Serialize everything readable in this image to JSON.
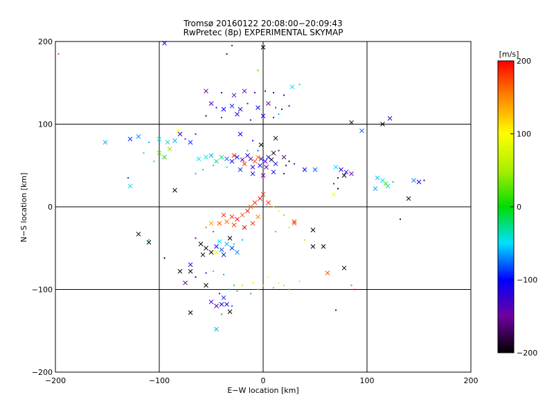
{
  "chart_data": {
    "type": "scatter",
    "title": "Tromsø 20160122 20:08:00−20:09:43",
    "subtitle": "RwPretec (8p) EXPERIMENTAL SKYMAP",
    "xlabel": "E−W location [km]",
    "ylabel": "N−S location [km]",
    "xlim": [
      -200,
      200
    ],
    "ylim": [
      -200,
      200
    ],
    "x_ticks": [
      -200,
      -100,
      0,
      100,
      200
    ],
    "y_ticks": [
      -200,
      -100,
      0,
      100,
      200
    ],
    "grid": true,
    "colorbar": {
      "label": "[m/s]",
      "min": -200,
      "max": 200,
      "ticks": [
        200,
        100,
        0,
        -100,
        -200
      ]
    },
    "markers": [
      "x",
      "dot"
    ],
    "points": [
      {
        "x": -197,
        "y": 185,
        "v": 180,
        "m": "dot"
      },
      {
        "x": -95,
        "y": 198,
        "v": -110,
        "m": "x"
      },
      {
        "x": -30,
        "y": 195,
        "v": -150,
        "m": "dot"
      },
      {
        "x": -35,
        "y": 185,
        "v": -170,
        "m": "dot"
      },
      {
        "x": 0,
        "y": 193,
        "v": -200,
        "m": "x"
      },
      {
        "x": -5,
        "y": 165,
        "v": 20,
        "m": "dot"
      },
      {
        "x": -55,
        "y": 140,
        "v": -160,
        "m": "x"
      },
      {
        "x": -40,
        "y": 138,
        "v": -120,
        "m": "dot"
      },
      {
        "x": -28,
        "y": 135,
        "v": -140,
        "m": "x"
      },
      {
        "x": -18,
        "y": 140,
        "v": -130,
        "m": "x"
      },
      {
        "x": -8,
        "y": 138,
        "v": -150,
        "m": "dot"
      },
      {
        "x": 2,
        "y": 140,
        "v": -170,
        "m": "dot"
      },
      {
        "x": 10,
        "y": 138,
        "v": -110,
        "m": "dot"
      },
      {
        "x": 20,
        "y": 135,
        "v": -120,
        "m": "dot"
      },
      {
        "x": 28,
        "y": 145,
        "v": -50,
        "m": "x"
      },
      {
        "x": 35,
        "y": 148,
        "v": -40,
        "m": "dot"
      },
      {
        "x": -50,
        "y": 125,
        "v": -130,
        "m": "x"
      },
      {
        "x": -45,
        "y": 120,
        "v": -110,
        "m": "dot"
      },
      {
        "x": -38,
        "y": 118,
        "v": -100,
        "m": "x"
      },
      {
        "x": -30,
        "y": 122,
        "v": -90,
        "m": "x"
      },
      {
        "x": -22,
        "y": 118,
        "v": -120,
        "m": "x"
      },
      {
        "x": -15,
        "y": 125,
        "v": -140,
        "m": "dot"
      },
      {
        "x": -5,
        "y": 120,
        "v": -100,
        "m": "x"
      },
      {
        "x": 5,
        "y": 125,
        "v": -150,
        "m": "x"
      },
      {
        "x": 12,
        "y": 120,
        "v": -80,
        "m": "dot"
      },
      {
        "x": 18,
        "y": 118,
        "v": -160,
        "m": "dot"
      },
      {
        "x": 25,
        "y": 122,
        "v": -130,
        "m": "dot"
      },
      {
        "x": -55,
        "y": 110,
        "v": -180,
        "m": "dot"
      },
      {
        "x": -40,
        "y": 108,
        "v": -150,
        "m": "dot"
      },
      {
        "x": -25,
        "y": 112,
        "v": -120,
        "m": "x"
      },
      {
        "x": -12,
        "y": 105,
        "v": -140,
        "m": "dot"
      },
      {
        "x": 0,
        "y": 110,
        "v": -100,
        "m": "x"
      },
      {
        "x": 10,
        "y": 108,
        "v": -130,
        "m": "dot"
      },
      {
        "x": 15,
        "y": 112,
        "v": -60,
        "m": "dot"
      },
      {
        "x": 85,
        "y": 102,
        "v": -170,
        "m": "x"
      },
      {
        "x": 95,
        "y": 92,
        "v": -80,
        "m": "x"
      },
      {
        "x": 115,
        "y": 100,
        "v": -200,
        "m": "x"
      },
      {
        "x": 122,
        "y": 107,
        "v": -130,
        "m": "x"
      },
      {
        "x": -152,
        "y": 78,
        "v": -60,
        "m": "x"
      },
      {
        "x": -128,
        "y": 82,
        "v": -90,
        "m": "x"
      },
      {
        "x": -120,
        "y": 85,
        "v": -70,
        "m": "x"
      },
      {
        "x": -110,
        "y": 78,
        "v": -60,
        "m": "dot"
      },
      {
        "x": -100,
        "y": 82,
        "v": -50,
        "m": "x"
      },
      {
        "x": -92,
        "y": 78,
        "v": -40,
        "m": "x"
      },
      {
        "x": -85,
        "y": 80,
        "v": -60,
        "m": "x"
      },
      {
        "x": -80,
        "y": 88,
        "v": -120,
        "m": "x"
      },
      {
        "x": -75,
        "y": 82,
        "v": -80,
        "m": "dot"
      },
      {
        "x": -70,
        "y": 78,
        "v": -90,
        "m": "x"
      },
      {
        "x": -65,
        "y": 88,
        "v": -140,
        "m": "dot"
      },
      {
        "x": -100,
        "y": 65,
        "v": 20,
        "m": "x"
      },
      {
        "x": -95,
        "y": 60,
        "v": 0,
        "m": "x"
      },
      {
        "x": -105,
        "y": 55,
        "v": -40,
        "m": "dot"
      },
      {
        "x": -90,
        "y": 70,
        "v": 40,
        "m": "x"
      },
      {
        "x": -82,
        "y": 92,
        "v": 100,
        "m": "x"
      },
      {
        "x": -130,
        "y": 35,
        "v": -90,
        "m": "dot"
      },
      {
        "x": -128,
        "y": 25,
        "v": -50,
        "m": "x"
      },
      {
        "x": -115,
        "y": 65,
        "v": -40,
        "m": "dot"
      },
      {
        "x": -85,
        "y": 20,
        "v": -200,
        "m": "x"
      },
      {
        "x": -62,
        "y": 58,
        "v": -50,
        "m": "x"
      },
      {
        "x": -55,
        "y": 60,
        "v": -40,
        "m": "x"
      },
      {
        "x": -50,
        "y": 62,
        "v": -60,
        "m": "x"
      },
      {
        "x": -45,
        "y": 55,
        "v": -30,
        "m": "x"
      },
      {
        "x": -40,
        "y": 60,
        "v": -20,
        "m": "x"
      },
      {
        "x": -35,
        "y": 58,
        "v": -80,
        "m": "x"
      },
      {
        "x": -30,
        "y": 55,
        "v": -110,
        "m": "x"
      },
      {
        "x": -25,
        "y": 60,
        "v": -100,
        "m": "x"
      },
      {
        "x": -20,
        "y": 57,
        "v": -140,
        "m": "x"
      },
      {
        "x": -15,
        "y": 62,
        "v": -120,
        "m": "x"
      },
      {
        "x": -12,
        "y": 58,
        "v": -160,
        "m": "x"
      },
      {
        "x": -8,
        "y": 55,
        "v": 170,
        "m": "x"
      },
      {
        "x": -5,
        "y": 60,
        "v": 160,
        "m": "x"
      },
      {
        "x": -2,
        "y": 58,
        "v": -110,
        "m": "x"
      },
      {
        "x": 2,
        "y": 55,
        "v": -130,
        "m": "x"
      },
      {
        "x": 5,
        "y": 60,
        "v": -100,
        "m": "x"
      },
      {
        "x": 8,
        "y": 57,
        "v": -180,
        "m": "x"
      },
      {
        "x": 12,
        "y": 52,
        "v": -90,
        "m": "x"
      },
      {
        "x": -28,
        "y": 62,
        "v": 190,
        "m": "x"
      },
      {
        "x": -18,
        "y": 52,
        "v": 180,
        "m": "x"
      },
      {
        "x": -10,
        "y": 48,
        "v": -120,
        "m": "x"
      },
      {
        "x": -3,
        "y": 50,
        "v": -100,
        "m": "x"
      },
      {
        "x": 3,
        "y": 48,
        "v": -140,
        "m": "x"
      },
      {
        "x": -22,
        "y": 45,
        "v": -90,
        "m": "x"
      },
      {
        "x": -35,
        "y": 48,
        "v": -40,
        "m": "dot"
      },
      {
        "x": -48,
        "y": 50,
        "v": -20,
        "m": "dot"
      },
      {
        "x": -58,
        "y": 45,
        "v": -30,
        "m": "dot"
      },
      {
        "x": -65,
        "y": 40,
        "v": -60,
        "m": "dot"
      },
      {
        "x": -10,
        "y": 40,
        "v": -110,
        "m": "x"
      },
      {
        "x": 0,
        "y": 38,
        "v": -150,
        "m": "x"
      },
      {
        "x": 10,
        "y": 42,
        "v": -100,
        "m": "x"
      },
      {
        "x": 20,
        "y": 40,
        "v": -120,
        "m": "dot"
      },
      {
        "x": 10,
        "y": 65,
        "v": -200,
        "m": "x"
      },
      {
        "x": 15,
        "y": 68,
        "v": -160,
        "m": "dot"
      },
      {
        "x": -5,
        "y": 68,
        "v": -80,
        "m": "dot"
      },
      {
        "x": -15,
        "y": 68,
        "v": -60,
        "m": "dot"
      },
      {
        "x": -2,
        "y": 75,
        "v": -200,
        "m": "x"
      },
      {
        "x": 12,
        "y": 83,
        "v": -200,
        "m": "x"
      },
      {
        "x": -22,
        "y": 88,
        "v": -100,
        "m": "x"
      },
      {
        "x": -10,
        "y": 80,
        "v": -120,
        "m": "dot"
      },
      {
        "x": 20,
        "y": 60,
        "v": -170,
        "m": "x"
      },
      {
        "x": 22,
        "y": 50,
        "v": -120,
        "m": "dot"
      },
      {
        "x": 25,
        "y": 55,
        "v": -200,
        "m": "dot"
      },
      {
        "x": 30,
        "y": 52,
        "v": -90,
        "m": "dot"
      },
      {
        "x": 40,
        "y": 45,
        "v": -100,
        "m": "x"
      },
      {
        "x": 50,
        "y": 45,
        "v": -80,
        "m": "x"
      },
      {
        "x": 70,
        "y": 48,
        "v": -50,
        "m": "x"
      },
      {
        "x": 75,
        "y": 45,
        "v": -110,
        "m": "x"
      },
      {
        "x": 80,
        "y": 42,
        "v": -120,
        "m": "x"
      },
      {
        "x": 85,
        "y": 40,
        "v": -140,
        "m": "x"
      },
      {
        "x": 78,
        "y": 38,
        "v": -200,
        "m": "x"
      },
      {
        "x": 72,
        "y": 35,
        "v": -180,
        "m": "dot"
      },
      {
        "x": 68,
        "y": 28,
        "v": -150,
        "m": "dot"
      },
      {
        "x": 72,
        "y": 22,
        "v": -190,
        "m": "dot"
      },
      {
        "x": 68,
        "y": 15,
        "v": 100,
        "m": "x"
      },
      {
        "x": 110,
        "y": 35,
        "v": -60,
        "m": "x"
      },
      {
        "x": 115,
        "y": 32,
        "v": -50,
        "m": "x"
      },
      {
        "x": 118,
        "y": 28,
        "v": 20,
        "m": "x"
      },
      {
        "x": 120,
        "y": 25,
        "v": -40,
        "m": "x"
      },
      {
        "x": 108,
        "y": 22,
        "v": -60,
        "m": "x"
      },
      {
        "x": 125,
        "y": 30,
        "v": 0,
        "m": "dot"
      },
      {
        "x": 140,
        "y": 10,
        "v": -200,
        "m": "x"
      },
      {
        "x": 145,
        "y": 32,
        "v": -70,
        "m": "x"
      },
      {
        "x": 150,
        "y": 30,
        "v": -100,
        "m": "x"
      },
      {
        "x": 155,
        "y": 32,
        "v": -170,
        "m": "dot"
      },
      {
        "x": 132,
        "y": -15,
        "v": -170,
        "m": "dot"
      },
      {
        "x": 0,
        "y": 15,
        "v": 180,
        "m": "x"
      },
      {
        "x": -3,
        "y": 10,
        "v": 200,
        "m": "x"
      },
      {
        "x": -8,
        "y": 5,
        "v": 180,
        "m": "x"
      },
      {
        "x": -12,
        "y": 0,
        "v": 160,
        "m": "x"
      },
      {
        "x": -15,
        "y": -5,
        "v": 190,
        "m": "x"
      },
      {
        "x": -20,
        "y": -10,
        "v": 170,
        "m": "x"
      },
      {
        "x": -25,
        "y": -15,
        "v": 200,
        "m": "x"
      },
      {
        "x": -30,
        "y": -12,
        "v": 180,
        "m": "x"
      },
      {
        "x": -35,
        "y": -18,
        "v": 160,
        "m": "x"
      },
      {
        "x": -38,
        "y": -10,
        "v": 190,
        "m": "x"
      },
      {
        "x": -42,
        "y": -20,
        "v": 170,
        "m": "x"
      },
      {
        "x": -28,
        "y": -22,
        "v": 180,
        "m": "x"
      },
      {
        "x": -18,
        "y": -25,
        "v": 200,
        "m": "x"
      },
      {
        "x": -10,
        "y": -20,
        "v": 180,
        "m": "x"
      },
      {
        "x": -5,
        "y": -12,
        "v": 150,
        "m": "x"
      },
      {
        "x": 5,
        "y": 5,
        "v": 180,
        "m": "x"
      },
      {
        "x": 10,
        "y": 0,
        "v": 120,
        "m": "dot"
      },
      {
        "x": 15,
        "y": -5,
        "v": 80,
        "m": "dot"
      },
      {
        "x": 20,
        "y": -10,
        "v": 40,
        "m": "dot"
      },
      {
        "x": 30,
        "y": -20,
        "v": 160,
        "m": "x"
      },
      {
        "x": 25,
        "y": -25,
        "v": 60,
        "m": "dot"
      },
      {
        "x": 12,
        "y": -30,
        "v": 20,
        "m": "dot"
      },
      {
        "x": -50,
        "y": -20,
        "v": 140,
        "m": "x"
      },
      {
        "x": -55,
        "y": -25,
        "v": 160,
        "m": "dot"
      },
      {
        "x": -48,
        "y": -30,
        "v": 180,
        "m": "dot"
      },
      {
        "x": -120,
        "y": -33,
        "v": -200,
        "m": "x"
      },
      {
        "x": -110,
        "y": -43,
        "v": -200,
        "m": "x"
      },
      {
        "x": -110,
        "y": -40,
        "v": -60,
        "m": "dot"
      },
      {
        "x": -60,
        "y": -45,
        "v": -200,
        "m": "x"
      },
      {
        "x": -55,
        "y": -50,
        "v": -200,
        "m": "x"
      },
      {
        "x": -50,
        "y": -55,
        "v": -200,
        "m": "x"
      },
      {
        "x": -45,
        "y": -48,
        "v": -110,
        "m": "x"
      },
      {
        "x": -40,
        "y": -52,
        "v": -80,
        "m": "x"
      },
      {
        "x": -35,
        "y": -45,
        "v": -60,
        "m": "x"
      },
      {
        "x": -30,
        "y": -50,
        "v": -90,
        "m": "x"
      },
      {
        "x": -25,
        "y": -55,
        "v": -70,
        "m": "x"
      },
      {
        "x": -42,
        "y": -42,
        "v": -50,
        "m": "x"
      },
      {
        "x": -38,
        "y": -58,
        "v": -100,
        "m": "x"
      },
      {
        "x": -32,
        "y": -38,
        "v": -200,
        "m": "x"
      },
      {
        "x": -28,
        "y": -45,
        "v": -40,
        "m": "dot"
      },
      {
        "x": -20,
        "y": -40,
        "v": -60,
        "m": "dot"
      },
      {
        "x": -45,
        "y": -55,
        "v": 80,
        "m": "x"
      },
      {
        "x": -58,
        "y": -58,
        "v": -200,
        "m": "x"
      },
      {
        "x": -65,
        "y": -38,
        "v": -140,
        "m": "dot"
      },
      {
        "x": -80,
        "y": -78,
        "v": -200,
        "m": "x"
      },
      {
        "x": -70,
        "y": -70,
        "v": -130,
        "m": "x"
      },
      {
        "x": -70,
        "y": -78,
        "v": -200,
        "m": "x"
      },
      {
        "x": -75,
        "y": -92,
        "v": -160,
        "m": "x"
      },
      {
        "x": -65,
        "y": -85,
        "v": -100,
        "m": "dot"
      },
      {
        "x": -55,
        "y": -80,
        "v": -90,
        "m": "dot"
      },
      {
        "x": -55,
        "y": -95,
        "v": -200,
        "m": "x"
      },
      {
        "x": -48,
        "y": -78,
        "v": -40,
        "m": "dot"
      },
      {
        "x": -38,
        "y": -82,
        "v": -60,
        "m": "dot"
      },
      {
        "x": -95,
        "y": -62,
        "v": -200,
        "m": "dot"
      },
      {
        "x": -70,
        "y": -128,
        "v": -200,
        "m": "x"
      },
      {
        "x": -50,
        "y": -115,
        "v": -120,
        "m": "x"
      },
      {
        "x": -45,
        "y": -120,
        "v": -130,
        "m": "x"
      },
      {
        "x": -40,
        "y": -118,
        "v": -110,
        "m": "x"
      },
      {
        "x": -38,
        "y": -110,
        "v": -90,
        "m": "x"
      },
      {
        "x": -35,
        "y": -118,
        "v": -110,
        "m": "x"
      },
      {
        "x": -32,
        "y": -127,
        "v": -200,
        "m": "x"
      },
      {
        "x": -30,
        "y": -120,
        "v": -80,
        "m": "dot"
      },
      {
        "x": -42,
        "y": -105,
        "v": -140,
        "m": "dot"
      },
      {
        "x": -33,
        "y": -100,
        "v": -60,
        "m": "dot"
      },
      {
        "x": -28,
        "y": -95,
        "v": 10,
        "m": "dot"
      },
      {
        "x": -20,
        "y": -95,
        "v": 60,
        "m": "dot"
      },
      {
        "x": -10,
        "y": -92,
        "v": 80,
        "m": "dot"
      },
      {
        "x": 0,
        "y": -95,
        "v": 120,
        "m": "dot"
      },
      {
        "x": 10,
        "y": -98,
        "v": 140,
        "m": "dot"
      },
      {
        "x": 15,
        "y": -92,
        "v": 90,
        "m": "dot"
      },
      {
        "x": 20,
        "y": -95,
        "v": 60,
        "m": "dot"
      },
      {
        "x": 5,
        "y": -85,
        "v": 100,
        "m": "dot"
      },
      {
        "x": -5,
        "y": -100,
        "v": 30,
        "m": "dot"
      },
      {
        "x": -12,
        "y": -105,
        "v": -10,
        "m": "dot"
      },
      {
        "x": -25,
        "y": -102,
        "v": 0,
        "m": "dot"
      },
      {
        "x": 25,
        "y": -100,
        "v": 150,
        "m": "dot"
      },
      {
        "x": 35,
        "y": -90,
        "v": 120,
        "m": "dot"
      },
      {
        "x": -45,
        "y": -148,
        "v": -60,
        "m": "x"
      },
      {
        "x": -40,
        "y": -130,
        "v": 0,
        "m": "dot"
      },
      {
        "x": 30,
        "y": -18,
        "v": 180,
        "m": "x"
      },
      {
        "x": 40,
        "y": -40,
        "v": 60,
        "m": "dot"
      },
      {
        "x": 48,
        "y": -28,
        "v": -200,
        "m": "x"
      },
      {
        "x": 48,
        "y": -48,
        "v": -200,
        "m": "x"
      },
      {
        "x": 58,
        "y": -48,
        "v": -200,
        "m": "x"
      },
      {
        "x": 62,
        "y": -80,
        "v": 170,
        "m": "x"
      },
      {
        "x": 78,
        "y": -74,
        "v": -200,
        "m": "x"
      },
      {
        "x": 85,
        "y": -95,
        "v": 170,
        "m": "dot"
      },
      {
        "x": 88,
        "y": -100,
        "v": 190,
        "m": "dot"
      },
      {
        "x": 70,
        "y": -125,
        "v": -170,
        "m": "dot"
      }
    ]
  }
}
